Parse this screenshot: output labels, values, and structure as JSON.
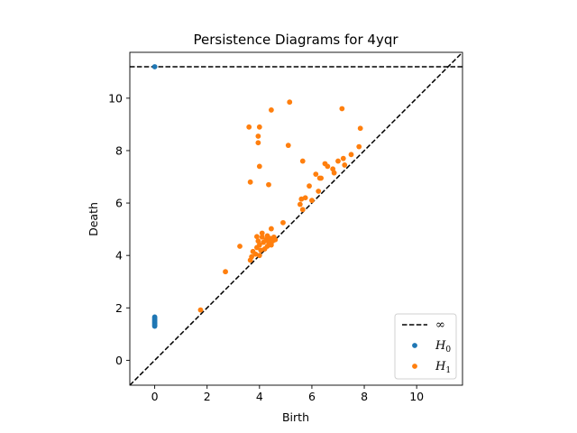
{
  "chart_data": {
    "type": "scatter",
    "title": "Persistence Diagrams for 4yqr",
    "xlabel": "Birth",
    "ylabel": "Death",
    "xlim": [
      -0.95,
      11.75
    ],
    "ylim": [
      -0.95,
      11.75
    ],
    "xticks": [
      0,
      2,
      4,
      6,
      8,
      10
    ],
    "yticks": [
      0,
      2,
      4,
      6,
      8,
      10
    ],
    "infinity_level": 11.2,
    "diagonal": true,
    "legend_position": "lower right",
    "legend": [
      {
        "label": "∞",
        "kind": "dashed-line",
        "color": "#000000"
      },
      {
        "label": "H0",
        "kind": "point",
        "color": "#1f77b4"
      },
      {
        "label": "H1",
        "kind": "point",
        "color": "#ff7f0e"
      }
    ],
    "series": [
      {
        "name": "H0",
        "color": "#1f77b4",
        "points": [
          [
            0,
            11.2
          ],
          [
            0,
            1.65
          ],
          [
            0,
            1.6
          ],
          [
            0,
            1.55
          ],
          [
            0,
            1.5
          ],
          [
            0,
            1.45
          ],
          [
            0,
            1.4
          ],
          [
            0,
            1.35
          ],
          [
            0,
            1.3
          ]
        ]
      },
      {
        "name": "H1",
        "color": "#ff7f0e",
        "points": [
          [
            1.75,
            1.92
          ],
          [
            2.7,
            3.38
          ],
          [
            3.25,
            4.35
          ],
          [
            3.65,
            3.82
          ],
          [
            3.7,
            3.95
          ],
          [
            3.75,
            4.15
          ],
          [
            3.85,
            4.05
          ],
          [
            3.9,
            4.3
          ],
          [
            3.95,
            4.55
          ],
          [
            3.9,
            4.72
          ],
          [
            4.0,
            4.4
          ],
          [
            4.05,
            4.2
          ],
          [
            4.1,
            4.7
          ],
          [
            4.1,
            4.85
          ],
          [
            4.15,
            4.5
          ],
          [
            4.2,
            4.25
          ],
          [
            4.25,
            4.6
          ],
          [
            4.3,
            4.75
          ],
          [
            4.3,
            4.35
          ],
          [
            4.35,
            4.5
          ],
          [
            4.4,
            4.65
          ],
          [
            4.45,
            4.4
          ],
          [
            4.5,
            4.55
          ],
          [
            4.55,
            4.7
          ],
          [
            4.6,
            4.6
          ],
          [
            4.0,
            4.0
          ],
          [
            4.45,
            5.02
          ],
          [
            4.9,
            5.25
          ],
          [
            5.55,
            5.95
          ],
          [
            5.6,
            6.15
          ],
          [
            5.65,
            5.75
          ],
          [
            5.75,
            6.2
          ],
          [
            5.9,
            6.65
          ],
          [
            6.0,
            6.1
          ],
          [
            6.15,
            7.1
          ],
          [
            6.25,
            6.45
          ],
          [
            6.3,
            6.95
          ],
          [
            6.35,
            6.95
          ],
          [
            6.5,
            7.5
          ],
          [
            6.6,
            7.4
          ],
          [
            6.8,
            7.3
          ],
          [
            6.85,
            7.15
          ],
          [
            7.0,
            7.6
          ],
          [
            7.2,
            7.7
          ],
          [
            7.25,
            7.45
          ],
          [
            7.5,
            7.85
          ],
          [
            7.8,
            8.15
          ],
          [
            7.85,
            8.85
          ],
          [
            7.15,
            9.6
          ],
          [
            5.65,
            7.6
          ],
          [
            5.1,
            8.2
          ],
          [
            5.15,
            9.85
          ],
          [
            4.45,
            9.55
          ],
          [
            4.35,
            6.7
          ],
          [
            4.0,
            7.4
          ],
          [
            3.95,
            8.3
          ],
          [
            3.95,
            8.55
          ],
          [
            4.0,
            8.9
          ],
          [
            3.6,
            8.9
          ],
          [
            3.65,
            6.8
          ]
        ]
      }
    ]
  }
}
